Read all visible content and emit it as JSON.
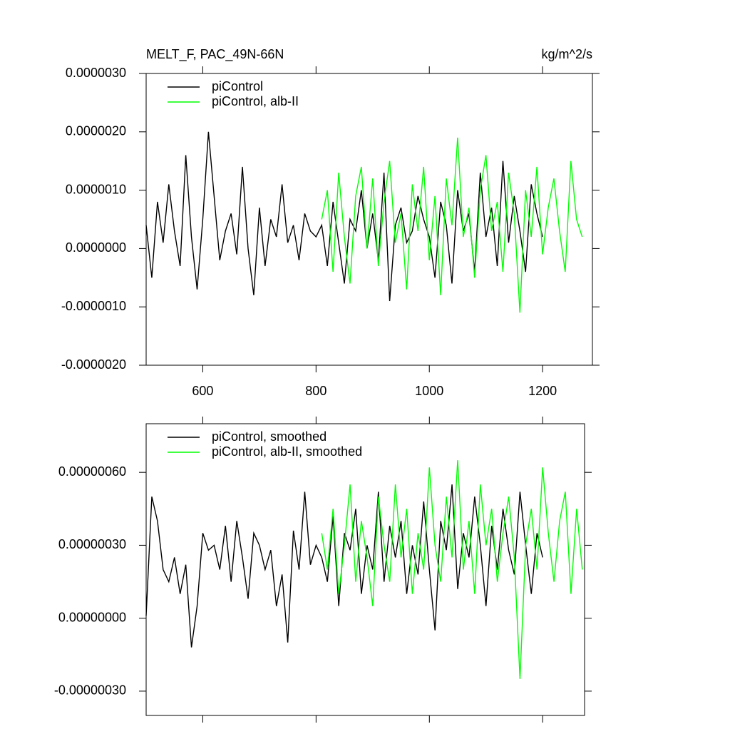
{
  "chart_data": [
    {
      "type": "line",
      "title": "MELT_F, PAC_49N-66N",
      "units": "kg/m^2/s",
      "xlim": [
        500,
        1288
      ],
      "ylim": [
        -2e-06,
        3e-06
      ],
      "xticks": [
        600,
        800,
        1000,
        1200
      ],
      "xtick_labels": true,
      "yticks": [
        {
          "value": -2e-06,
          "label": "-0.0000020"
        },
        {
          "value": -1e-06,
          "label": "-0.0000010"
        },
        {
          "value": 0,
          "label": "0.0000000"
        },
        {
          "value": 1e-06,
          "label": "0.0000010"
        },
        {
          "value": 2e-06,
          "label": "0.0000020"
        },
        {
          "value": 3e-06,
          "label": "0.0000030"
        }
      ],
      "series": [
        {
          "name": "piControl",
          "color": "#000000",
          "x": [
            500,
            510,
            520,
            530,
            540,
            550,
            560,
            570,
            580,
            590,
            600,
            610,
            620,
            630,
            640,
            650,
            660,
            670,
            680,
            690,
            700,
            710,
            720,
            730,
            740,
            750,
            760,
            770,
            780,
            790,
            800,
            810,
            820,
            830,
            840,
            850,
            860,
            870,
            880,
            890,
            900,
            910,
            920,
            930,
            940,
            950,
            960,
            970,
            980,
            990,
            1000,
            1010,
            1020,
            1030,
            1040,
            1050,
            1060,
            1070,
            1080,
            1090,
            1100,
            1110,
            1120,
            1130,
            1140,
            1150,
            1160,
            1170,
            1180,
            1190,
            1200
          ],
          "values": [
            4e-07,
            -5e-07,
            8e-07,
            1e-07,
            1.1e-06,
            3e-07,
            -3e-07,
            1.6e-06,
            2e-07,
            -7e-07,
            5e-07,
            2e-06,
            9e-07,
            -2e-07,
            3e-07,
            6e-07,
            -1e-07,
            1.4e-06,
            0,
            -8e-07,
            7e-07,
            -3e-07,
            5e-07,
            2e-07,
            1.1e-06,
            1e-07,
            4e-07,
            -2e-07,
            6e-07,
            3e-07,
            2e-07,
            4e-07,
            -3e-07,
            8e-07,
            1e-07,
            -6e-07,
            5e-07,
            3e-07,
            1e-06,
            0,
            6e-07,
            -2e-07,
            1.3e-06,
            -9e-07,
            4e-07,
            7e-07,
            1e-07,
            3e-07,
            9e-07,
            5e-07,
            2e-07,
            -5e-07,
            8e-07,
            4e-07,
            -6e-07,
            1e-06,
            3e-07,
            6e-07,
            -4e-07,
            1.3e-06,
            2e-07,
            7e-07,
            -3e-07,
            1.5e-06,
            1e-07,
            9e-07,
            3e-07,
            -4e-07,
            1.1e-06,
            6e-07,
            2e-07
          ]
        },
        {
          "name": "piControl, alb-II",
          "color": "#00ff00",
          "x": [
            810,
            820,
            830,
            840,
            850,
            860,
            870,
            880,
            890,
            900,
            910,
            920,
            930,
            940,
            950,
            960,
            970,
            980,
            990,
            1000,
            1010,
            1020,
            1030,
            1040,
            1050,
            1060,
            1070,
            1080,
            1090,
            1100,
            1110,
            1120,
            1130,
            1140,
            1150,
            1160,
            1170,
            1180,
            1190,
            1200,
            1210,
            1220,
            1230,
            1240,
            1250,
            1260,
            1270
          ],
          "values": [
            5e-07,
            1e-06,
            -4e-07,
            1.3e-06,
            2e-07,
            -6e-07,
            9e-07,
            1.4e-06,
            0,
            1.2e-06,
            -3e-07,
            8e-07,
            1.5e-06,
            1e-07,
            6e-07,
            -7e-07,
            1.1e-06,
            3e-07,
            1.4e-06,
            -2e-07,
            9e-07,
            -8e-07,
            1.2e-06,
            4e-07,
            1.9e-06,
            2e-07,
            7e-07,
            -5e-07,
            1e-06,
            1.6e-06,
            3e-07,
            8e-07,
            -4e-07,
            1.3e-06,
            6e-07,
            -1.1e-06,
            1e-06,
            2e-07,
            1.4e-06,
            -1e-07,
            7e-07,
            1.2e-06,
            3e-07,
            -4e-07,
            1.5e-06,
            5e-07,
            2e-07
          ]
        }
      ]
    },
    {
      "type": "line",
      "xlim": [
        500,
        1274
      ],
      "ylim": [
        -4e-07,
        8e-07
      ],
      "xticks": [
        600,
        800,
        1000,
        1200
      ],
      "xtick_labels": false,
      "yticks": [
        {
          "value": -3e-07,
          "label": "-0.00000030"
        },
        {
          "value": 0,
          "label": "0.00000000"
        },
        {
          "value": 3e-07,
          "label": "0.00000030"
        },
        {
          "value": 6e-07,
          "label": "0.00000060"
        }
      ],
      "series": [
        {
          "name": "piControl, smoothed",
          "color": "#000000",
          "x": [
            500,
            510,
            520,
            530,
            540,
            550,
            560,
            570,
            580,
            590,
            600,
            610,
            620,
            630,
            640,
            650,
            660,
            670,
            680,
            690,
            700,
            710,
            720,
            730,
            740,
            750,
            760,
            770,
            780,
            790,
            800,
            810,
            820,
            830,
            840,
            850,
            860,
            870,
            880,
            890,
            900,
            910,
            920,
            930,
            940,
            950,
            960,
            970,
            980,
            990,
            1000,
            1010,
            1020,
            1030,
            1040,
            1050,
            1060,
            1070,
            1080,
            1090,
            1100,
            1110,
            1120,
            1130,
            1140,
            1150,
            1160,
            1170,
            1180,
            1190,
            1200
          ],
          "values": [
            1e-08,
            5e-07,
            4e-07,
            2e-07,
            1.5e-07,
            2.5e-07,
            1e-07,
            2.2e-07,
            -1.2e-07,
            5e-08,
            3.5e-07,
            2.8e-07,
            3e-07,
            2e-07,
            3.8e-07,
            1.5e-07,
            4e-07,
            2.5e-07,
            8e-08,
            3.5e-07,
            3e-07,
            2e-07,
            2.8e-07,
            5e-08,
            1.8e-07,
            -1e-07,
            3.6e-07,
            2e-07,
            5.2e-07,
            2.2e-07,
            3e-07,
            2.5e-07,
            1.5e-07,
            4.2e-07,
            5e-08,
            3.5e-07,
            2.8e-07,
            4.5e-07,
            1e-07,
            3e-07,
            2e-07,
            5.2e-07,
            1.5e-07,
            3.8e-07,
            2.5e-07,
            4e-07,
            1e-07,
            3e-07,
            1.8e-07,
            4.8e-07,
            2e-07,
            -5e-08,
            4e-07,
            2.8e-07,
            5.5e-07,
            1.2e-07,
            3.5e-07,
            2.5e-07,
            5e-07,
            3e-07,
            5e-08,
            3.8e-07,
            2e-07,
            4.5e-07,
            2.8e-07,
            1.8e-07,
            5.2e-07,
            3e-07,
            1e-07,
            3.5e-07,
            2.5e-07
          ]
        },
        {
          "name": "piControl, alb-II, smoothed",
          "color": "#00ff00",
          "x": [
            810,
            820,
            830,
            840,
            850,
            860,
            870,
            880,
            890,
            900,
            910,
            920,
            930,
            940,
            950,
            960,
            970,
            980,
            990,
            1000,
            1010,
            1020,
            1030,
            1040,
            1050,
            1060,
            1070,
            1080,
            1090,
            1100,
            1110,
            1120,
            1130,
            1140,
            1150,
            1160,
            1170,
            1180,
            1190,
            1200,
            1210,
            1220,
            1230,
            1240,
            1250,
            1260,
            1270
          ],
          "values": [
            3.5e-07,
            2e-07,
            4.5e-07,
            1e-07,
            3e-07,
            5.5e-07,
            1.5e-07,
            4e-07,
            2.5e-07,
            5e-08,
            5e-07,
            3e-07,
            1.5e-07,
            5.5e-07,
            2.5e-07,
            4.5e-07,
            1e-07,
            3.5e-07,
            2e-07,
            6.2e-07,
            3e-07,
            1.5e-07,
            5e-07,
            2.5e-07,
            6.5e-07,
            2e-07,
            4e-07,
            1e-07,
            5.5e-07,
            3e-07,
            4.5e-07,
            1.5e-07,
            3.5e-07,
            5e-07,
            2.5e-07,
            -2.5e-07,
            3e-07,
            4.5e-07,
            2e-07,
            6.2e-07,
            3.5e-07,
            1.5e-07,
            4e-07,
            5.2e-07,
            1e-07,
            4.5e-07,
            2e-07
          ]
        }
      ]
    }
  ]
}
